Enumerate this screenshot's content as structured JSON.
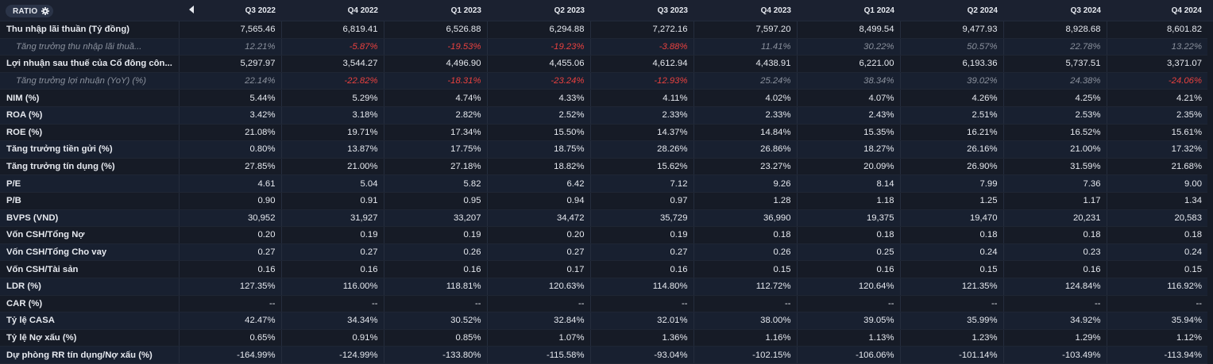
{
  "header": {
    "ratio_label": "RATIO",
    "periods": [
      "Q3 2022",
      "Q4 2022",
      "Q1 2023",
      "Q2 2023",
      "Q3 2023",
      "Q4 2023",
      "Q1 2024",
      "Q2 2024",
      "Q3 2024",
      "Q4 2024"
    ]
  },
  "colors": {
    "negative": "#e8413f",
    "muted": "#8a909c",
    "background": "#161b26"
  },
  "icons": {
    "settings": "gear-icon",
    "collapse": "caret-left-icon"
  },
  "rows": [
    {
      "label": "Thu nhập lãi thuần (Tỷ đồng)",
      "sub": false,
      "values": [
        "7,565.46",
        "6,819.41",
        "6,526.88",
        "6,294.88",
        "7,272.16",
        "7,597.20",
        "8,499.54",
        "9,477.93",
        "8,928.68",
        "8,601.82"
      ]
    },
    {
      "label": "Tăng trưởng thu nhập lãi thuầ...",
      "sub": true,
      "values": [
        "12.21%",
        "-5.87%",
        "-19.53%",
        "-19.23%",
        "-3.88%",
        "11.41%",
        "30.22%",
        "50.57%",
        "22.78%",
        "13.22%"
      ]
    },
    {
      "label": "Lợi nhuận sau thuế của Cổ đông côn...",
      "sub": false,
      "values": [
        "5,297.97",
        "3,544.27",
        "4,496.90",
        "4,455.06",
        "4,612.94",
        "4,438.91",
        "6,221.00",
        "6,193.36",
        "5,737.51",
        "3,371.07"
      ]
    },
    {
      "label": "Tăng trưởng lợi nhuận (YoY) (%)",
      "sub": true,
      "values": [
        "22.14%",
        "-22.82%",
        "-18.31%",
        "-23.24%",
        "-12.93%",
        "25.24%",
        "38.34%",
        "39.02%",
        "24.38%",
        "-24.06%"
      ]
    },
    {
      "label": "NIM (%)",
      "sub": false,
      "values": [
        "5.44%",
        "5.29%",
        "4.74%",
        "4.33%",
        "4.11%",
        "4.02%",
        "4.07%",
        "4.26%",
        "4.25%",
        "4.21%"
      ]
    },
    {
      "label": "ROA (%)",
      "sub": false,
      "values": [
        "3.42%",
        "3.18%",
        "2.82%",
        "2.52%",
        "2.33%",
        "2.33%",
        "2.43%",
        "2.51%",
        "2.53%",
        "2.35%"
      ]
    },
    {
      "label": "ROE (%)",
      "sub": false,
      "values": [
        "21.08%",
        "19.71%",
        "17.34%",
        "15.50%",
        "14.37%",
        "14.84%",
        "15.35%",
        "16.21%",
        "16.52%",
        "15.61%"
      ]
    },
    {
      "label": "Tăng trưởng tiền gửi (%)",
      "sub": false,
      "values": [
        "0.80%",
        "13.87%",
        "17.75%",
        "18.75%",
        "28.26%",
        "26.86%",
        "18.27%",
        "26.16%",
        "21.00%",
        "17.32%"
      ]
    },
    {
      "label": "Tăng trưởng tín dụng (%)",
      "sub": false,
      "values": [
        "27.85%",
        "21.00%",
        "27.18%",
        "18.82%",
        "15.62%",
        "23.27%",
        "20.09%",
        "26.90%",
        "31.59%",
        "21.68%"
      ]
    },
    {
      "label": "P/E",
      "sub": false,
      "values": [
        "4.61",
        "5.04",
        "5.82",
        "6.42",
        "7.12",
        "9.26",
        "8.14",
        "7.99",
        "7.36",
        "9.00"
      ]
    },
    {
      "label": "P/B",
      "sub": false,
      "values": [
        "0.90",
        "0.91",
        "0.95",
        "0.94",
        "0.97",
        "1.28",
        "1.18",
        "1.25",
        "1.17",
        "1.34"
      ]
    },
    {
      "label": "BVPS (VND)",
      "sub": false,
      "values": [
        "30,952",
        "31,927",
        "33,207",
        "34,472",
        "35,729",
        "36,990",
        "19,375",
        "19,470",
        "20,231",
        "20,583"
      ]
    },
    {
      "label": "Vốn CSH/Tổng Nợ",
      "sub": false,
      "values": [
        "0.20",
        "0.19",
        "0.19",
        "0.20",
        "0.19",
        "0.18",
        "0.18",
        "0.18",
        "0.18",
        "0.18"
      ]
    },
    {
      "label": "Vốn CSH/Tổng Cho vay",
      "sub": false,
      "values": [
        "0.27",
        "0.27",
        "0.26",
        "0.27",
        "0.27",
        "0.26",
        "0.25",
        "0.24",
        "0.23",
        "0.24"
      ]
    },
    {
      "label": "Vốn CSH/Tài sản",
      "sub": false,
      "values": [
        "0.16",
        "0.16",
        "0.16",
        "0.17",
        "0.16",
        "0.15",
        "0.16",
        "0.15",
        "0.16",
        "0.15"
      ]
    },
    {
      "label": "LDR (%)",
      "sub": false,
      "values": [
        "127.35%",
        "116.00%",
        "118.81%",
        "120.63%",
        "114.80%",
        "112.72%",
        "120.64%",
        "121.35%",
        "124.84%",
        "116.92%"
      ]
    },
    {
      "label": "CAR (%)",
      "sub": false,
      "values": [
        "--",
        "--",
        "--",
        "--",
        "--",
        "--",
        "--",
        "--",
        "--",
        "--"
      ]
    },
    {
      "label": "Tỷ lệ CASA",
      "sub": false,
      "values": [
        "42.47%",
        "34.34%",
        "30.52%",
        "32.84%",
        "32.01%",
        "38.00%",
        "39.05%",
        "35.99%",
        "34.92%",
        "35.94%"
      ]
    },
    {
      "label": "Tỷ lệ Nợ xấu (%)",
      "sub": false,
      "values": [
        "0.65%",
        "0.91%",
        "0.85%",
        "1.07%",
        "1.36%",
        "1.16%",
        "1.13%",
        "1.23%",
        "1.29%",
        "1.12%"
      ]
    },
    {
      "label": "Dự phòng RR tín dụng/Nợ xấu (%)",
      "sub": false,
      "values": [
        "-164.99%",
        "-124.99%",
        "-133.80%",
        "-115.58%",
        "-93.04%",
        "-102.15%",
        "-106.06%",
        "-101.14%",
        "-103.49%",
        "-113.94%"
      ]
    }
  ]
}
